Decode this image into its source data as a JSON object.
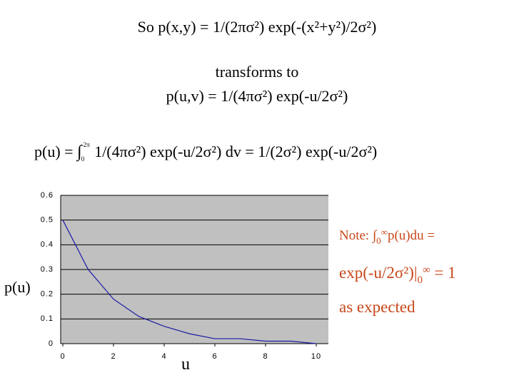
{
  "slide": {
    "title": "So p(x,y) = 1/(2πσ²) exp(-(x²+y²)/2σ²)",
    "line2": "transforms to",
    "line3": "p(u,v) = 1/(4πσ²) exp(-u/2σ²)",
    "formula": {
      "prefix": "p(u) = ",
      "integral": "∫",
      "lower": "0",
      "upper": "2π",
      "body": "1/(4πσ²) exp(-u/2σ²) dv = 1/(2σ²) exp(-u/2σ²)"
    },
    "note": {
      "line1": {
        "prefix": "Note: ∫",
        "lower": "0",
        "upper": "∞",
        "body": "p(u)du ="
      },
      "line2": {
        "prefix": "exp(-u/2σ²)|",
        "lower": "0",
        "upper": "∞",
        "body": " = 1"
      },
      "line3": "as expected"
    }
  },
  "chart_data": {
    "type": "line",
    "x_label": "u",
    "y_label": "p(u)",
    "x": [
      0,
      1,
      2,
      3,
      4,
      5,
      6,
      7,
      8,
      9,
      10
    ],
    "series": [
      {
        "color": "#1a1aa6",
        "values": [
          0.5,
          0.3,
          0.18,
          0.11,
          0.07,
          0.04,
          0.02,
          0.02,
          0.01,
          0.01,
          0.0
        ]
      }
    ],
    "xlim": [
      0,
      10
    ],
    "ylim": [
      0,
      0.6
    ],
    "xticks": [
      0,
      2,
      4,
      6,
      8,
      10
    ],
    "yticks": [
      0,
      0.1,
      0.2,
      0.3,
      0.4,
      0.5,
      0.6
    ],
    "grid": true,
    "plot_color": "#c0c0c0"
  }
}
